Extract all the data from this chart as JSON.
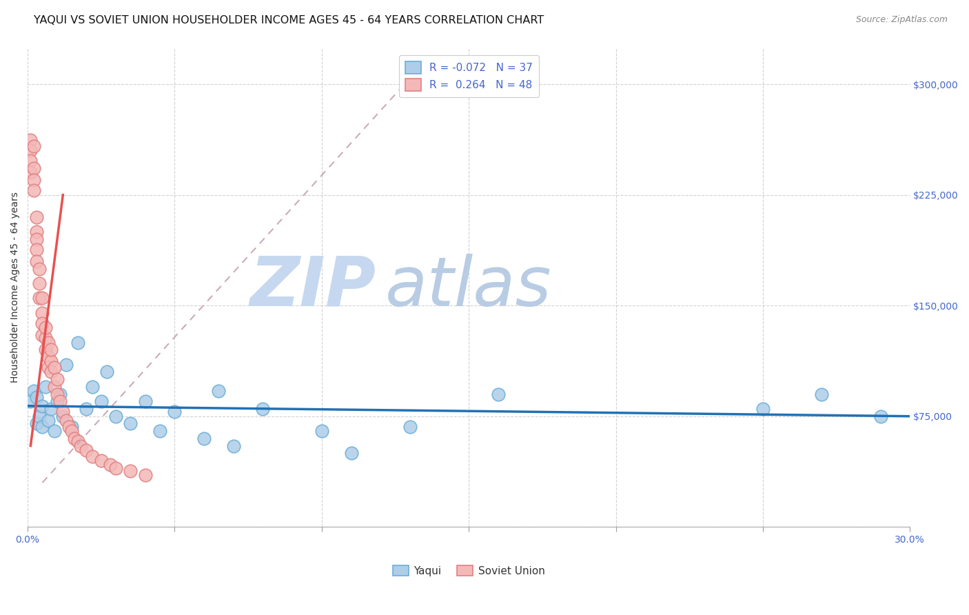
{
  "title": "YAQUI VS SOVIET UNION HOUSEHOLDER INCOME AGES 45 - 64 YEARS CORRELATION CHART",
  "source": "Source: ZipAtlas.com",
  "ylabel_text": "Householder Income Ages 45 - 64 years",
  "x_min": 0.0,
  "x_max": 0.3,
  "y_min": 0,
  "y_max": 325000,
  "x_ticks": [
    0.0,
    0.05,
    0.1,
    0.15,
    0.2,
    0.25,
    0.3
  ],
  "y_ticks": [
    0,
    75000,
    150000,
    225000,
    300000
  ],
  "grid_color": "#cccccc",
  "background_color": "#ffffff",
  "yaqui_scatter_color_face": "#aecde8",
  "yaqui_scatter_color_edge": "#6baed6",
  "soviet_scatter_color_face": "#f4b8b8",
  "soviet_scatter_color_edge": "#e08080",
  "yaqui_R": -0.072,
  "yaqui_N": 37,
  "soviet_R": 0.264,
  "soviet_N": 48,
  "yaqui_line_color": "#2171b5",
  "soviet_line_solid_color": "#e85050",
  "soviet_line_dash_color": "#d0a0a0",
  "watermark_zip_color": "#c8daf0",
  "watermark_atlas_color": "#b0c8e8",
  "tick_color": "#4466cc",
  "title_fontsize": 11.5,
  "axis_label_fontsize": 10,
  "tick_fontsize": 10,
  "legend_fontsize": 11,
  "source_fontsize": 9,
  "yaqui_scatter_x": [
    0.001,
    0.002,
    0.003,
    0.003,
    0.004,
    0.005,
    0.005,
    0.006,
    0.007,
    0.008,
    0.009,
    0.01,
    0.011,
    0.012,
    0.013,
    0.015,
    0.017,
    0.02,
    0.022,
    0.025,
    0.027,
    0.03,
    0.035,
    0.04,
    0.045,
    0.05,
    0.06,
    0.065,
    0.07,
    0.08,
    0.1,
    0.11,
    0.13,
    0.16,
    0.25,
    0.27,
    0.29
  ],
  "yaqui_scatter_y": [
    85000,
    92000,
    70000,
    88000,
    75000,
    82000,
    68000,
    95000,
    72000,
    80000,
    65000,
    85000,
    90000,
    75000,
    110000,
    68000,
    125000,
    80000,
    95000,
    85000,
    105000,
    75000,
    70000,
    85000,
    65000,
    78000,
    60000,
    92000,
    55000,
    80000,
    65000,
    50000,
    68000,
    90000,
    80000,
    90000,
    75000
  ],
  "soviet_scatter_x": [
    0.001,
    0.001,
    0.001,
    0.001,
    0.002,
    0.002,
    0.002,
    0.002,
    0.003,
    0.003,
    0.003,
    0.003,
    0.003,
    0.004,
    0.004,
    0.004,
    0.005,
    0.005,
    0.005,
    0.005,
    0.006,
    0.006,
    0.006,
    0.007,
    0.007,
    0.007,
    0.008,
    0.008,
    0.008,
    0.009,
    0.009,
    0.01,
    0.01,
    0.011,
    0.012,
    0.013,
    0.014,
    0.015,
    0.016,
    0.017,
    0.018,
    0.02,
    0.022,
    0.025,
    0.028,
    0.03,
    0.035,
    0.04
  ],
  "soviet_scatter_y": [
    262000,
    255000,
    248000,
    240000,
    258000,
    243000,
    235000,
    228000,
    210000,
    200000,
    195000,
    188000,
    180000,
    175000,
    165000,
    155000,
    145000,
    155000,
    138000,
    130000,
    128000,
    120000,
    135000,
    115000,
    125000,
    108000,
    112000,
    105000,
    120000,
    95000,
    108000,
    90000,
    100000,
    85000,
    78000,
    72000,
    68000,
    65000,
    60000,
    58000,
    55000,
    52000,
    48000,
    45000,
    42000,
    40000,
    38000,
    35000
  ]
}
